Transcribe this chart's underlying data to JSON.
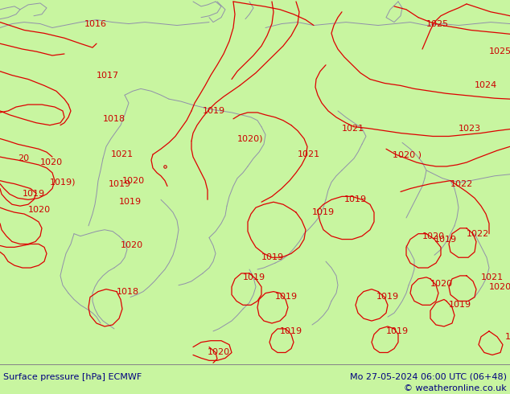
{
  "title_left": "Surface pressure [hPa] ECMWF",
  "title_right": "Mo 27-05-2024 06:00 UTC (06+48)",
  "copyright": "© weatheronline.co.uk",
  "map_bg_color": "#c8f5a0",
  "land_color": "#c8f5a0",
  "sea_color": "#d8eeff",
  "border_color": "#000000",
  "text_color_dark": "#000080",
  "contour_color": "#dd0000",
  "coast_color": "#9090aa",
  "label_color": "#cc0000",
  "bottom_bar_color": "#ffffff",
  "bottom_bar_height": 0.075,
  "figsize": [
    6.34,
    4.9
  ],
  "dpi": 100,
  "font_size_labels": 8,
  "font_size_bottom": 8
}
